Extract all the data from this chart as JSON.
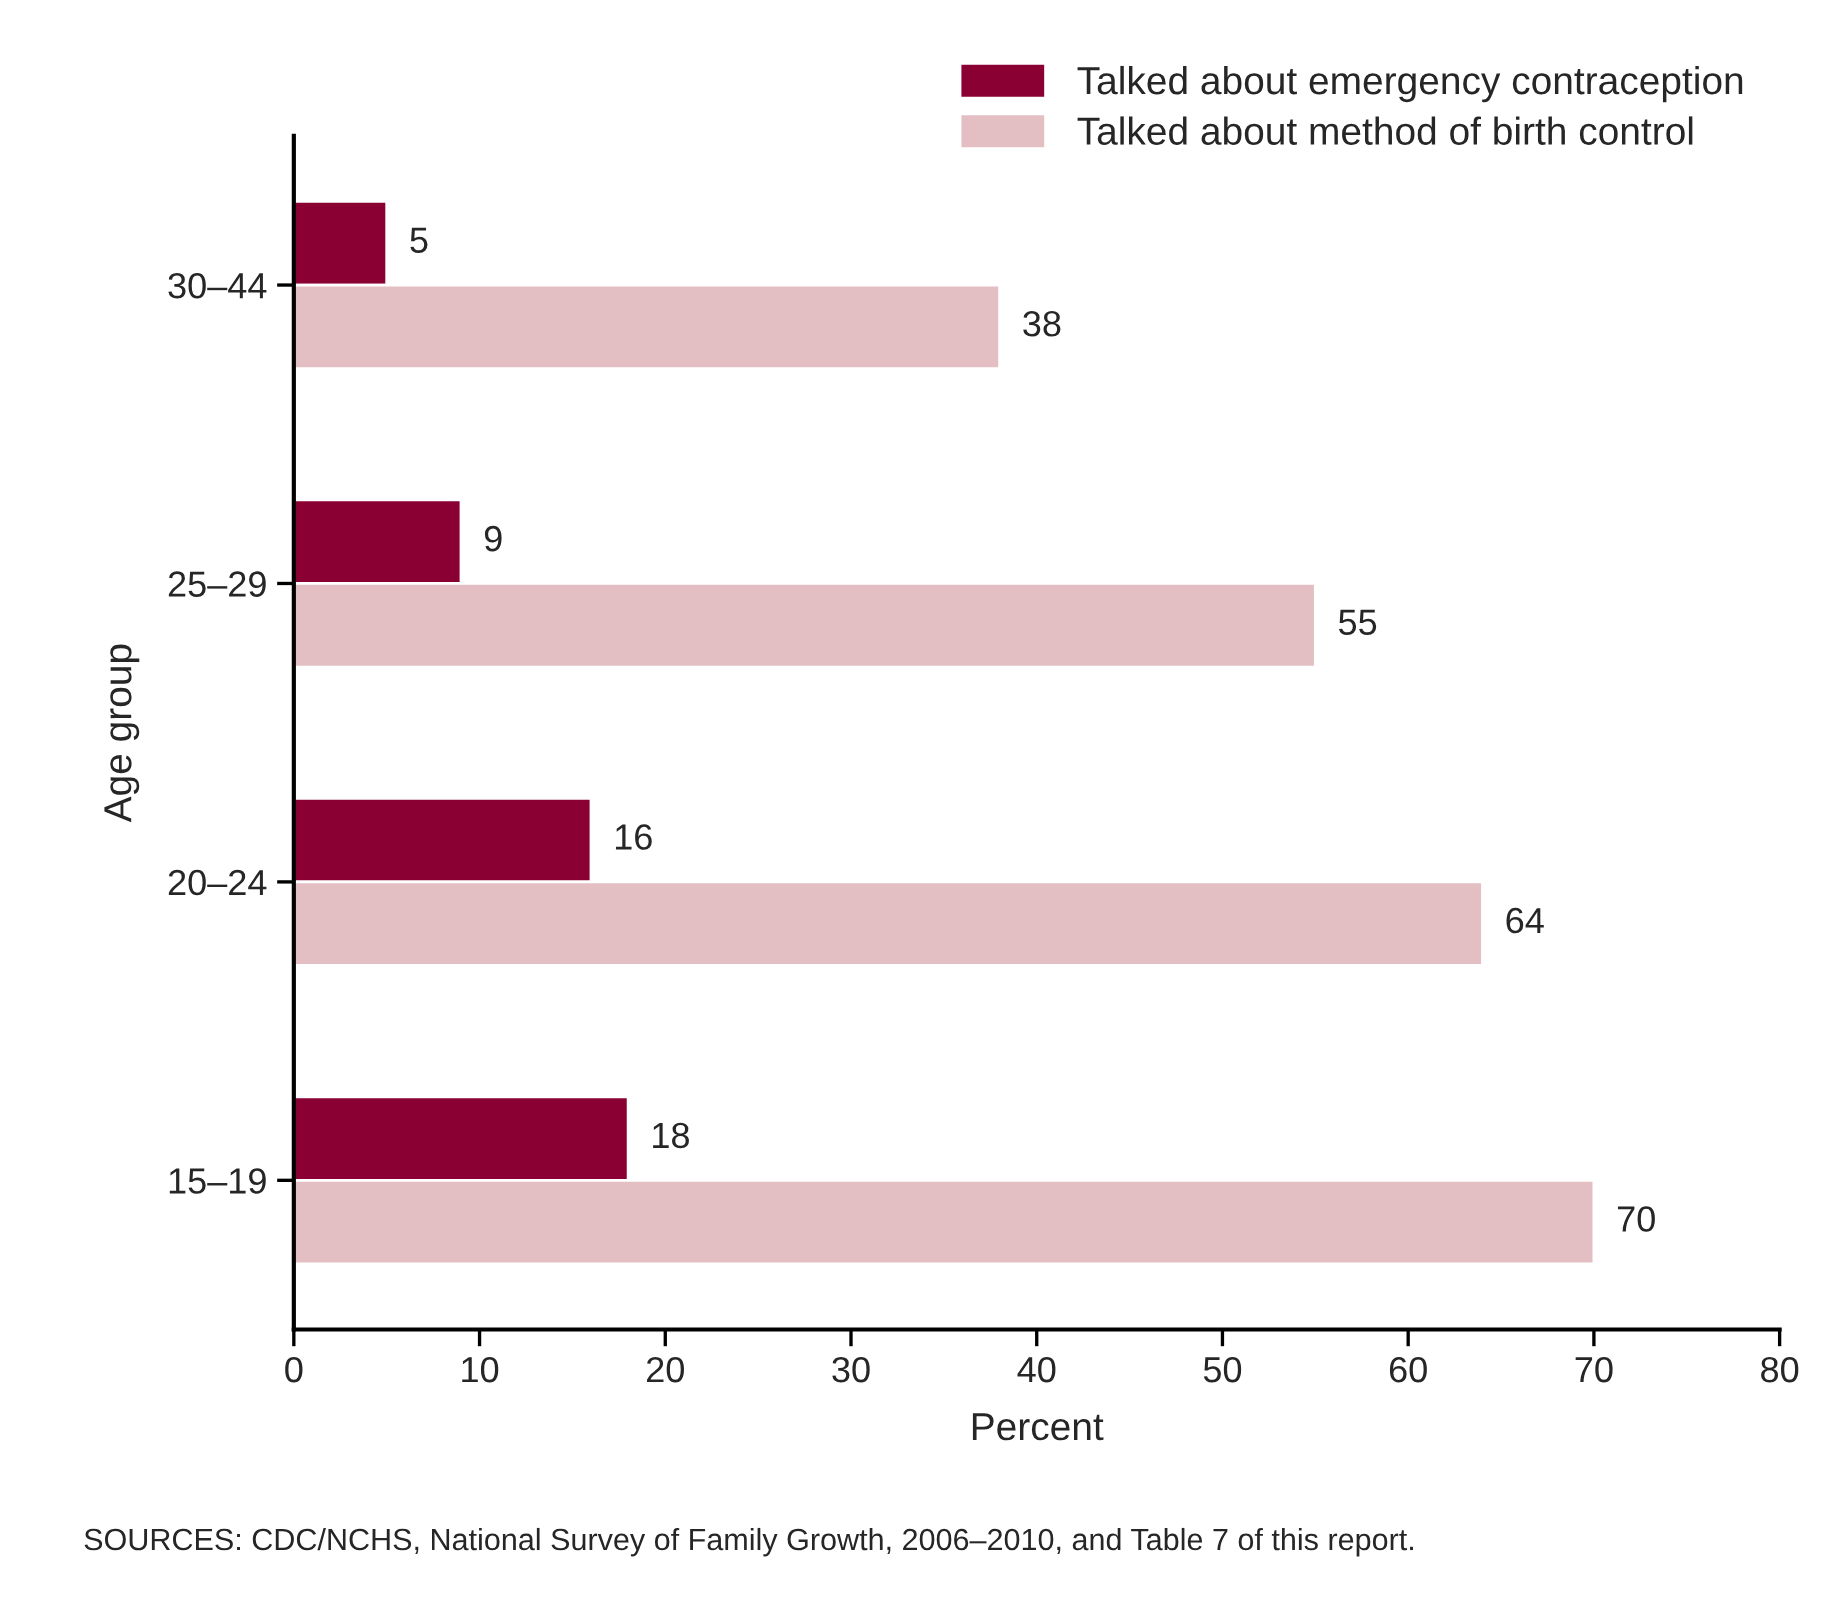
{
  "chart_data": {
    "type": "bar",
    "orientation": "horizontal",
    "xlabel": "Percent",
    "ylabel": "Age group",
    "categories": [
      "30–44",
      "25–29",
      "20–24",
      "15–19"
    ],
    "series": [
      {
        "name": "Talked about emergency contraception",
        "color": "#8b0033",
        "values": [
          5,
          9,
          16,
          18
        ]
      },
      {
        "name": "Talked about method of birth control",
        "color": "#e3bfc4",
        "values": [
          38,
          55,
          64,
          70
        ]
      }
    ],
    "xlim": [
      0,
      80
    ],
    "xticks": [
      0,
      10,
      20,
      30,
      40,
      50,
      60,
      70,
      80
    ],
    "grid": false,
    "legend": "top right",
    "data_labels": true,
    "annotations": [
      "SOURCES: CDC/NCHS, National Survey of Family Growth, 2006–2010, and Table 7 of this report."
    ]
  }
}
